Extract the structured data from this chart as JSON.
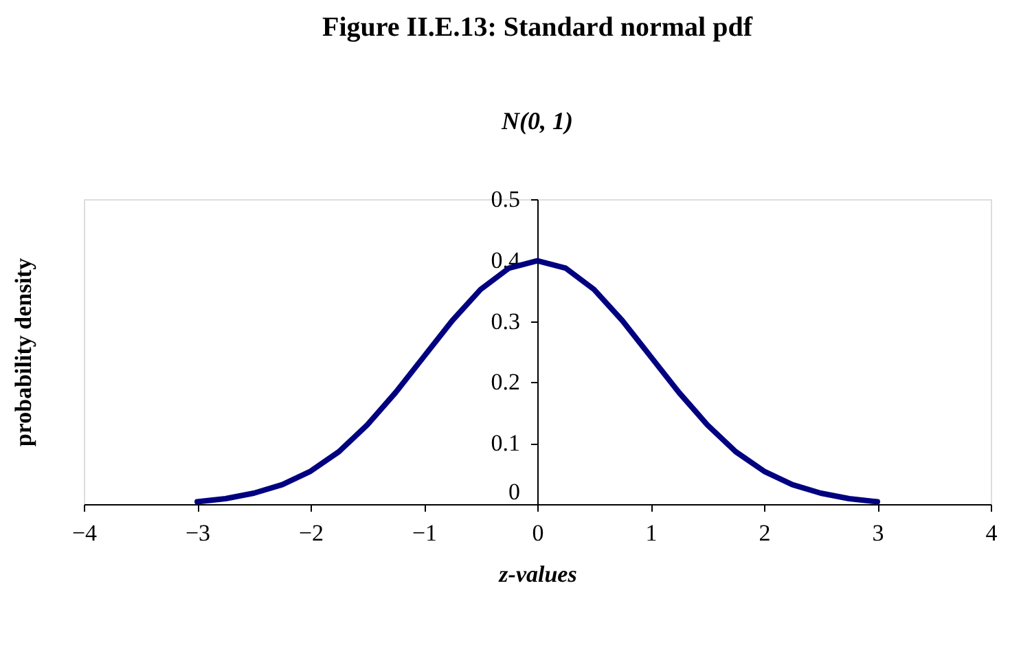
{
  "chart_data": {
    "type": "line",
    "title": "Figure II.E.13: Standard normal pdf",
    "subtitle": "N(0, 1)",
    "xlabel": "z-values",
    "ylabel": "probability density",
    "x": [
      -3,
      -2.75,
      -2.5,
      -2.25,
      -2,
      -1.75,
      -1.5,
      -1.25,
      -1,
      -0.75,
      -0.5,
      -0.25,
      0,
      0.25,
      0.5,
      0.75,
      1,
      1.25,
      1.5,
      1.75,
      2,
      2.25,
      2.5,
      2.75,
      3
    ],
    "series": [
      {
        "color": "#000080",
        "values": [
          0.004,
          0.009,
          0.018,
          0.032,
          0.054,
          0.086,
          0.13,
          0.183,
          0.242,
          0.301,
          0.352,
          0.387,
          0.399,
          0.387,
          0.352,
          0.301,
          0.242,
          0.183,
          0.13,
          0.086,
          0.054,
          0.032,
          0.018,
          0.009,
          0.004
        ]
      }
    ],
    "xlim": [
      -4,
      4
    ],
    "xticks": [
      -4,
      -3,
      -2,
      -1,
      0,
      1,
      2,
      3,
      4
    ],
    "ylim": [
      0,
      0.5
    ],
    "yticks": [
      0,
      0.1,
      0.2,
      0.3,
      0.4,
      0.5
    ],
    "grid": false,
    "marker": "none",
    "line_style": "solid"
  }
}
